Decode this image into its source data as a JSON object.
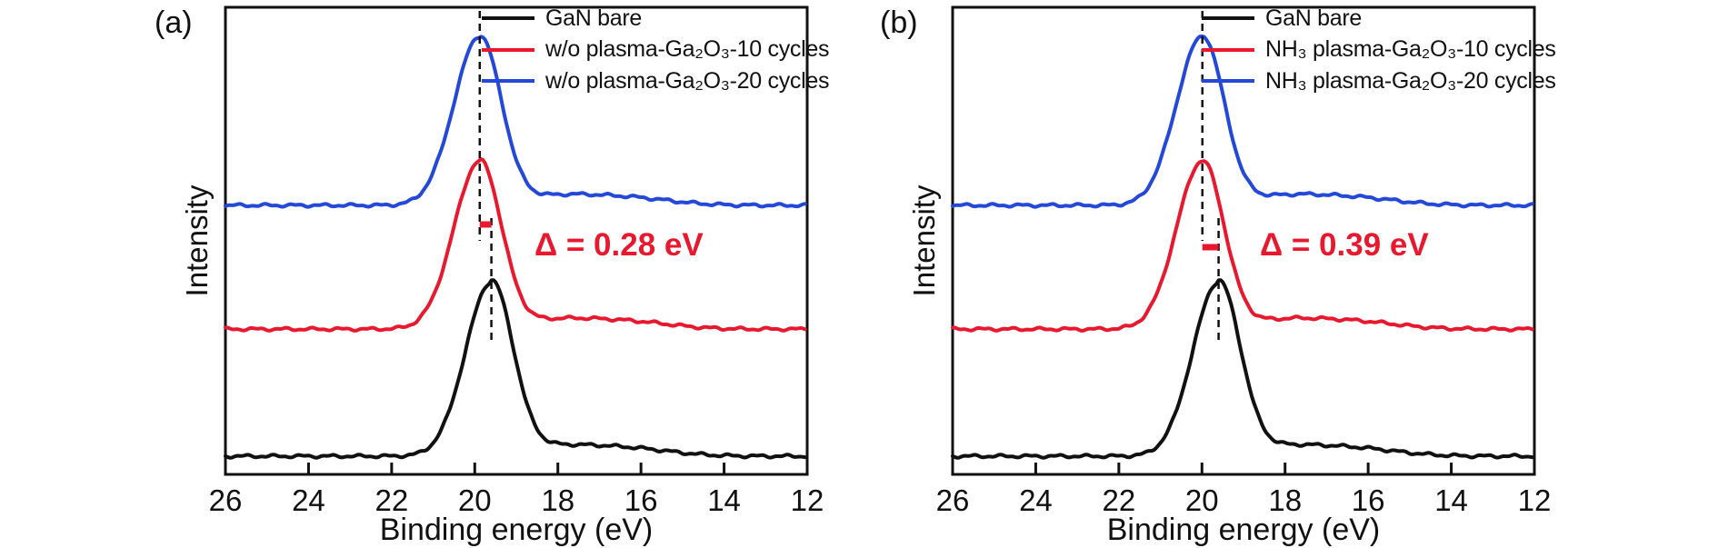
{
  "chart_data": [
    {
      "panel_label": "(a)",
      "type": "line",
      "title": "",
      "xlabel": "Binding energy (eV)",
      "ylabel": "Intensity",
      "x_range": [
        26,
        12
      ],
      "x_axis_reversed": true,
      "x_ticks": [
        26,
        24,
        22,
        20,
        18,
        16,
        14,
        12
      ],
      "grid": false,
      "legend_position": "top-right-inside",
      "series": [
        {
          "name": "GaN bare",
          "color": "#111111",
          "peak_center_eV": 19.6,
          "baseline_offset_frac": 0.039,
          "peak_height_frac": 0.373,
          "sigma_left_eV": 0.62,
          "sigma_right_eV": 0.52
        },
        {
          "name": "w/o plasma-Ga₂O₃-10 cycles",
          "color": "#e8192e",
          "peak_center_eV": 19.88,
          "baseline_offset_frac": 0.311,
          "peak_height_frac": 0.36,
          "sigma_left_eV": 0.62,
          "sigma_right_eV": 0.52
        },
        {
          "name": "w/o plasma-Ga₂O₃-20 cycles",
          "color": "#2449d8",
          "peak_center_eV": 19.88,
          "baseline_offset_frac": 0.576,
          "peak_height_frac": 0.362,
          "sigma_left_eV": 0.62,
          "sigma_right_eV": 0.52
        }
      ],
      "annotation": {
        "text": "Δ = 0.28 eV",
        "delta_eV": 0.28,
        "between_eV": [
          19.88,
          19.6
        ],
        "color": "#e8192e"
      }
    },
    {
      "panel_label": "(b)",
      "type": "line",
      "title": "",
      "xlabel": "Binding energy (eV)",
      "ylabel": "Intensity",
      "x_range": [
        26,
        12
      ],
      "x_axis_reversed": true,
      "x_ticks": [
        26,
        24,
        22,
        20,
        18,
        16,
        14,
        12
      ],
      "grid": false,
      "legend_position": "top-right-inside",
      "series": [
        {
          "name": "GaN bare",
          "color": "#111111",
          "peak_center_eV": 19.6,
          "baseline_offset_frac": 0.039,
          "peak_height_frac": 0.373,
          "sigma_left_eV": 0.62,
          "sigma_right_eV": 0.52
        },
        {
          "name": "NH₃ plasma-Ga₂O₃-10 cycles",
          "color": "#e8192e",
          "peak_center_eV": 19.99,
          "baseline_offset_frac": 0.311,
          "peak_height_frac": 0.36,
          "sigma_left_eV": 0.62,
          "sigma_right_eV": 0.52
        },
        {
          "name": "NH₃ plasma-Ga₂O₃-20 cycles",
          "color": "#2449d8",
          "peak_center_eV": 19.99,
          "baseline_offset_frac": 0.576,
          "peak_height_frac": 0.362,
          "sigma_left_eV": 0.62,
          "sigma_right_eV": 0.52
        }
      ],
      "annotation": {
        "text": "Δ = 0.39 eV",
        "delta_eV": 0.39,
        "between_eV": [
          19.99,
          19.6
        ],
        "color": "#e8192e"
      }
    }
  ]
}
